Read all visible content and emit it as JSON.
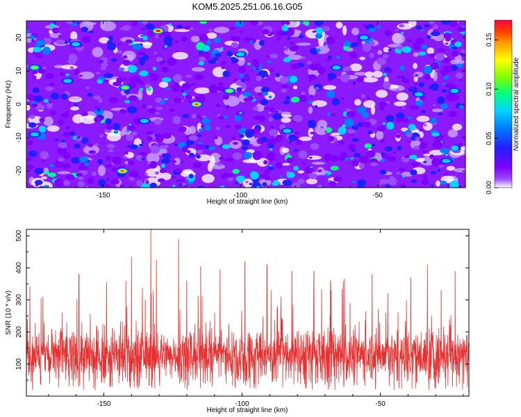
{
  "figure": {
    "title": "KOM5.2025.251.06.16.G05"
  },
  "colors": {
    "snr_line": "#e83030",
    "background": "#ffffff",
    "spectrogram_base": "#8c1aff",
    "colormap": [
      "#ffffff",
      "#9a4dff",
      "#7f00ff",
      "#2020ff",
      "#0080ff",
      "#00d4ff",
      "#00ff80",
      "#80ff00",
      "#ffff00",
      "#ffa000",
      "#ff4000",
      "#ff0040"
    ]
  },
  "chart_data": [
    {
      "type": "heatmap",
      "title": "KOM5.2025.251.06.16.G05",
      "xlabel": "Height of straight line (km)",
      "ylabel": "Frequency (Hz)",
      "xlim": [
        -178,
        -18
      ],
      "ylim": [
        -25,
        25
      ],
      "xticks": [
        -150,
        -100,
        -50
      ],
      "yticks": [
        -20,
        -10,
        0,
        10,
        20
      ],
      "colorbar": {
        "label": "Normalized spectral amplitude",
        "range": [
          0.0,
          0.17
        ],
        "ticks": [
          "0.00",
          "0.05",
          "0.10",
          "0.15"
        ]
      },
      "peaks": [
        {
          "x": -130,
          "y": 22,
          "amp": 0.17
        },
        {
          "x": -143,
          "y": -20,
          "amp": 0.16
        },
        {
          "x": -116,
          "y": 0,
          "amp": 0.15
        },
        {
          "x": -175,
          "y": 11,
          "amp": 0.1
        },
        {
          "x": -163,
          "y": 7,
          "amp": 0.09
        },
        {
          "x": -142,
          "y": 5,
          "amp": 0.1
        },
        {
          "x": -104,
          "y": 4,
          "amp": 0.11
        },
        {
          "x": -100,
          "y": 15,
          "amp": 0.09
        },
        {
          "x": -35,
          "y": 3,
          "amp": 0.09
        },
        {
          "x": -65,
          "y": 11,
          "amp": 0.09
        },
        {
          "x": -135,
          "y": -5,
          "amp": 0.09
        },
        {
          "x": -175,
          "y": -9,
          "amp": 0.08
        },
        {
          "x": -25,
          "y": -17,
          "amp": 0.08
        },
        {
          "x": -160,
          "y": 18,
          "amp": 0.09
        },
        {
          "x": -83,
          "y": -8,
          "amp": 0.08
        },
        {
          "x": -55,
          "y": 20,
          "amp": 0.08
        },
        {
          "x": -22,
          "y": 4,
          "amp": 0.08
        }
      ]
    },
    {
      "type": "line",
      "xlabel": "Height of straight line (km)",
      "ylabel": "SNR (10 * v/v)",
      "xlim": [
        -178,
        -18
      ],
      "ylim": [
        0,
        520
      ],
      "xticks": [
        -150,
        -100,
        -50
      ],
      "yticks": [
        100,
        200,
        300,
        400,
        500
      ],
      "series": [
        {
          "peaks": [
            {
              "x": -133,
              "y": 520
            },
            {
              "x": -123,
              "y": 490
            },
            {
              "x": -140,
              "y": 435
            },
            {
              "x": -131,
              "y": 425
            },
            {
              "x": -115,
              "y": 405
            },
            {
              "x": -108,
              "y": 395
            },
            {
              "x": -99,
              "y": 420
            },
            {
              "x": -91,
              "y": 410
            },
            {
              "x": -159,
              "y": 380
            },
            {
              "x": -149,
              "y": 355
            },
            {
              "x": -135,
              "y": 300
            },
            {
              "x": -120,
              "y": 360
            },
            {
              "x": -82,
              "y": 390
            },
            {
              "x": -74,
              "y": 390
            },
            {
              "x": -68,
              "y": 360
            },
            {
              "x": -33,
              "y": 410
            },
            {
              "x": -28,
              "y": 330
            },
            {
              "x": -23,
              "y": 390
            },
            {
              "x": -53,
              "y": 380
            },
            {
              "x": -39,
              "y": 370
            },
            {
              "x": -48,
              "y": 260
            },
            {
              "x": -172,
              "y": 310
            },
            {
              "x": -165,
              "y": 260
            },
            {
              "x": -142,
              "y": 360
            },
            {
              "x": -86,
              "y": 310
            },
            {
              "x": -61,
              "y": 290
            }
          ],
          "baseline_mean": 130,
          "baseline_spread": 55,
          "floor_min": 18
        }
      ]
    }
  ]
}
